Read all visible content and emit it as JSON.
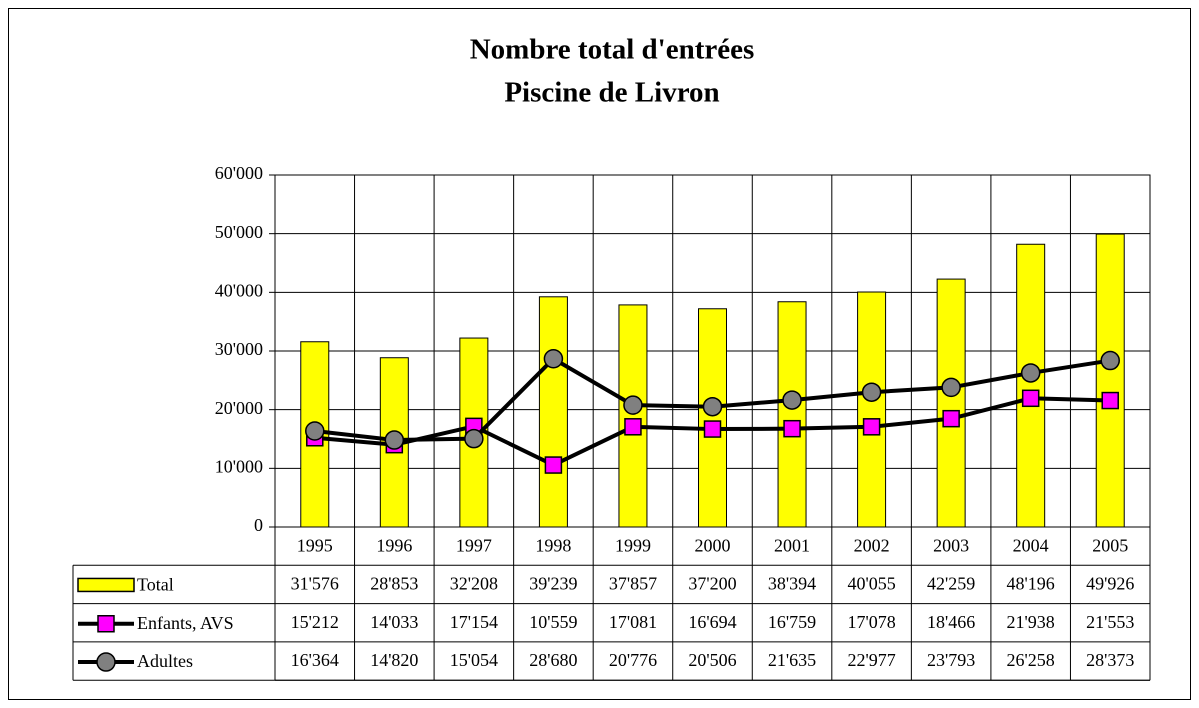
{
  "chart_data": {
    "type": "bar",
    "title": "Nombre total d'entrées",
    "subtitle": "Piscine de Livron",
    "categories": [
      "1995",
      "1996",
      "1997",
      "1998",
      "1999",
      "2000",
      "2001",
      "2002",
      "2003",
      "2004",
      "2005"
    ],
    "series": [
      {
        "name": "Total",
        "type": "bar",
        "color": "#ffff00",
        "values": [
          31576,
          28853,
          32208,
          39239,
          37857,
          37200,
          38394,
          40055,
          42259,
          48196,
          49926
        ],
        "value_labels": [
          "31'576",
          "28'853",
          "32'208",
          "39'239",
          "37'857",
          "37'200",
          "38'394",
          "40'055",
          "42'259",
          "48'196",
          "49'926"
        ]
      },
      {
        "name": "Enfants, AVS",
        "type": "line",
        "marker": "square",
        "color": "#ff00ff",
        "values": [
          15212,
          14033,
          17154,
          10559,
          17081,
          16694,
          16759,
          17078,
          18466,
          21938,
          21553
        ],
        "value_labels": [
          "15'212",
          "14'033",
          "17'154",
          "10'559",
          "17'081",
          "16'694",
          "16'759",
          "17'078",
          "18'466",
          "21'938",
          "21'553"
        ]
      },
      {
        "name": "Adultes",
        "type": "line",
        "marker": "circle",
        "color": "#808080",
        "values": [
          16364,
          14820,
          15054,
          28680,
          20776,
          20506,
          21635,
          22977,
          23793,
          26258,
          28373
        ],
        "value_labels": [
          "16'364",
          "14'820",
          "15'054",
          "28'680",
          "20'776",
          "20'506",
          "21'635",
          "22'977",
          "23'793",
          "26'258",
          "28'373"
        ]
      }
    ],
    "ylim": [
      0,
      60000
    ],
    "yticks": [
      0,
      {
        "value": 10000,
        "label": "10'000"
      },
      {
        "value": 20000,
        "label": "20'000"
      },
      {
        "value": 30000,
        "label": "30'000"
      },
      {
        "value": 40000,
        "label": "40'000"
      },
      {
        "value": 50000,
        "label": "50'000"
      },
      {
        "value": 60000,
        "label": "60'000"
      }
    ],
    "grid": true
  }
}
